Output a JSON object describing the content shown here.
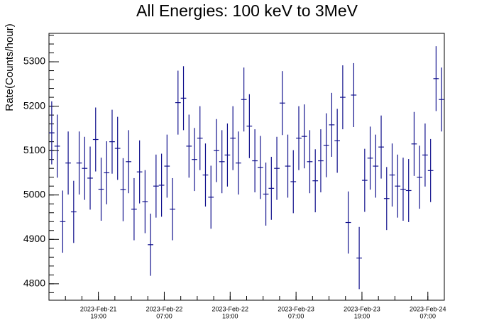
{
  "chart_data": {
    "type": "errorbar",
    "title": "All Energies:  100 keV to 3MeV",
    "ylabel": "Rate(Counts/hour)",
    "color": "#10108c",
    "x": [
      10.5,
      11.5,
      12.5,
      13.5,
      14.5,
      15.5,
      16.5,
      17.5,
      18.5,
      19.5,
      20.5,
      21.5,
      22.5,
      23.5,
      24.5,
      25.5,
      26.5,
      27.5,
      28.5,
      29.5,
      30.5,
      31.5,
      32.5,
      33.5,
      34.5,
      35.5,
      36.5,
      37.5,
      38.5,
      39.5,
      40.5,
      41.5,
      42.5,
      43.5,
      44.5,
      45.5,
      46.5,
      47.5,
      48.5,
      49.5,
      50.5,
      51.5,
      52.5,
      53.5,
      54.5,
      55.5,
      56.5,
      57.5,
      58.5,
      59.5,
      60.5,
      61.5,
      62.5,
      63.5,
      64.5,
      65.5,
      66.5,
      67.5,
      68.5,
      69.5,
      70.5,
      71.5,
      72.5,
      73.5,
      74.5,
      75.5,
      76.5,
      77.5,
      78.5,
      79.5,
      80.5,
      81.5
    ],
    "values": [
      5140,
      5110,
      4940,
      5072,
      4962,
      5072,
      5060,
      5038,
      5125,
      5013,
      5050,
      5120,
      5105,
      5012,
      5075,
      4968,
      5052,
      4985,
      4888,
      5020,
      5022,
      5065,
      4968,
      5208,
      5218,
      5110,
      5080,
      5128,
      5045,
      4995,
      5100,
      5075,
      5090,
      5128,
      5072,
      5215,
      5155,
      5077,
      5062,
      5002,
      5015,
      5060,
      5207,
      5065,
      5030,
      5128,
      5132,
      5075,
      5032,
      5077,
      5112,
      5158,
      5122,
      5220,
      4938,
      5225,
      4858,
      5033,
      5083,
      5065,
      5108,
      4992,
      5045,
      5020,
      5013,
      5010,
      5115,
      5040,
      5090,
      5055,
      5262,
      5215
    ],
    "errors": [
      71,
      71,
      70,
      71,
      70,
      71,
      71,
      71,
      72,
      71,
      71,
      72,
      71,
      71,
      71,
      70,
      71,
      71,
      70,
      71,
      71,
      71,
      70,
      72,
      72,
      71,
      71,
      72,
      71,
      71,
      71,
      71,
      71,
      72,
      71,
      72,
      72,
      71,
      71,
      71,
      71,
      71,
      72,
      71,
      71,
      72,
      72,
      71,
      71,
      71,
      72,
      72,
      72,
      72,
      70,
      72,
      70,
      71,
      71,
      71,
      71,
      71,
      71,
      71,
      71,
      71,
      72,
      71,
      71,
      71,
      73,
      72
    ],
    "xlim": [
      10,
      82
    ],
    "ylim": [
      4763,
      5364
    ],
    "yticks": [
      4800,
      4900,
      5000,
      5100,
      5200,
      5300
    ],
    "xticks": [
      {
        "value": 19,
        "label": [
          "2023-Feb-21",
          "19:00"
        ]
      },
      {
        "value": 31,
        "label": [
          "2023-Feb-22",
          "07:00"
        ]
      },
      {
        "value": 43,
        "label": [
          "2023-Feb-22",
          "19:00"
        ]
      },
      {
        "value": 55,
        "label": [
          "2023-Feb-23",
          "07:00"
        ]
      },
      {
        "value": 67,
        "label": [
          "2023-Feb-23",
          "19:00"
        ]
      },
      {
        "value": 79,
        "label": [
          "2023-Feb-24",
          "07:00"
        ]
      }
    ]
  }
}
